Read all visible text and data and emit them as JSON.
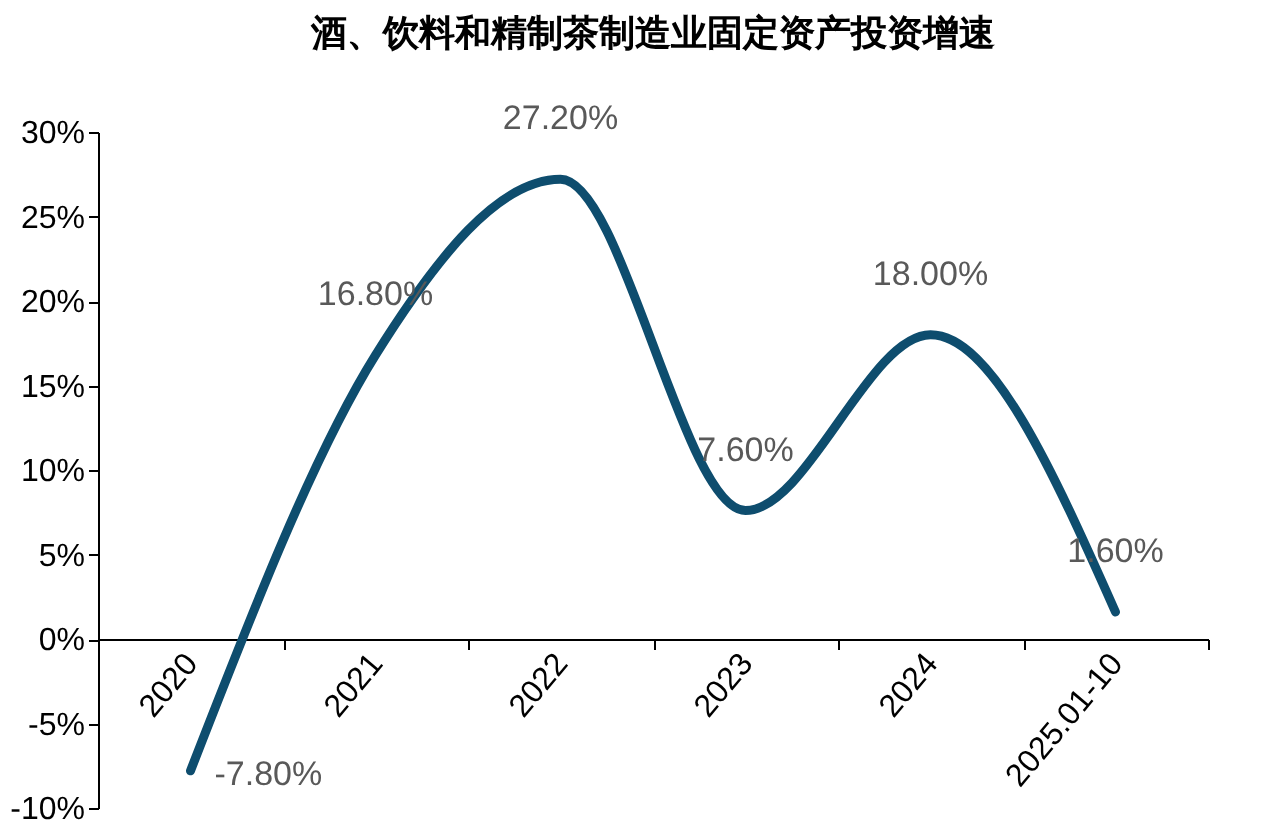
{
  "chart_data": {
    "type": "line",
    "title": "酒、饮料和精制茶制造业固定资产投资增速",
    "categories": [
      "2020",
      "2021",
      "2022",
      "2023",
      "2024",
      "2025.01-10"
    ],
    "series": [
      {
        "color": "#0e4d6e",
        "values": [
          -7.8,
          16.8,
          27.2,
          7.6,
          18.0,
          1.6
        ],
        "value_labels": [
          "-7.80%",
          "16.80%",
          "27.20%",
          "7.60%",
          "18.00%",
          "1.60%"
        ]
      }
    ],
    "ylim": [
      -10,
      30
    ],
    "yticks": [
      {
        "value": -10,
        "label": "-10%"
      },
      {
        "value": -5,
        "label": "-5%"
      },
      {
        "value": 0,
        "label": "0%"
      },
      {
        "value": 5,
        "label": "5%"
      },
      {
        "value": 10,
        "label": "10%"
      },
      {
        "value": 15,
        "label": "15%"
      },
      {
        "value": 20,
        "label": "20%"
      },
      {
        "value": 25,
        "label": "25%"
      },
      {
        "value": 30,
        "label": "30%"
      }
    ],
    "grid": false,
    "marker": "none",
    "line_style": "solid"
  }
}
